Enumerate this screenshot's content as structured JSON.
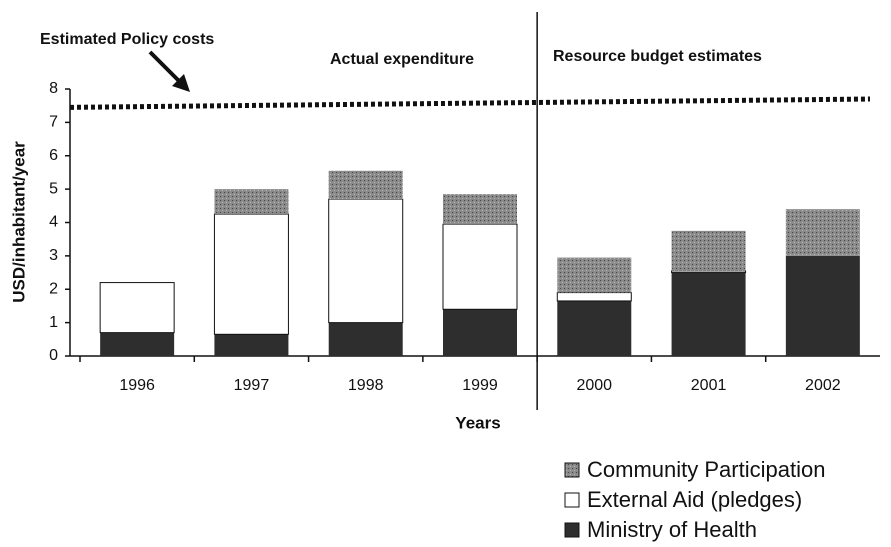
{
  "chart_data": {
    "type": "stacked_bar",
    "ylabel": "USD/inhabitant/year",
    "xlabel": "Years",
    "categories": [
      "1996",
      "1997",
      "1998",
      "1999",
      "2000",
      "2001",
      "2002"
    ],
    "series": [
      {
        "name": "Community Participation",
        "color": "#8a8a8a",
        "values": [
          0,
          0.75,
          0.85,
          0.9,
          1.05,
          1.2,
          1.4
        ]
      },
      {
        "name": "External Aid (pledges)",
        "color": "#ffffff",
        "values": [
          1.5,
          3.6,
          3.7,
          2.55,
          0.25,
          0.05,
          0
        ]
      },
      {
        "name": "Ministry of Health",
        "color": "#2e2e2e",
        "values": [
          0.7,
          0.65,
          1.0,
          1.4,
          1.65,
          2.5,
          3.0
        ]
      }
    ],
    "ylim": [
      0,
      8
    ],
    "yticks": [
      0,
      1,
      2,
      3,
      4,
      5,
      6,
      7,
      8
    ],
    "reference_line": {
      "label": "Estimated Policy costs",
      "start": 7.45,
      "end": 7.7
    },
    "annotations": [
      "Actual expenditure",
      "Resource budget estimates"
    ]
  }
}
